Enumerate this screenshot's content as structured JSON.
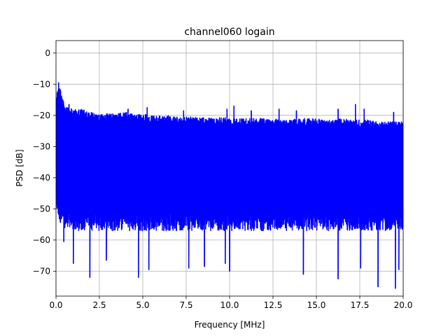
{
  "chart_data": {
    "type": "line",
    "title": "channel060 logain",
    "xlabel": "Frequency [MHz]",
    "ylabel": "PSD [dB]",
    "xlim": [
      0,
      20
    ],
    "ylim": [
      -78,
      4
    ],
    "grid": true,
    "xticks": [
      0,
      2.5,
      5,
      7.5,
      10,
      12.5,
      15,
      17.5,
      20
    ],
    "xtick_labels": [
      "0.0",
      "2.5",
      "5.0",
      "7.5",
      "10.0",
      "12.5",
      "15.0",
      "17.5",
      "20.0"
    ],
    "yticks": [
      0,
      -10,
      -20,
      -30,
      -40,
      -50,
      -60,
      -70
    ],
    "ytick_labels": [
      "0",
      "−10",
      "−20",
      "−30",
      "−40",
      "−50",
      "−60",
      "−70"
    ],
    "series": [
      {
        "color": "#0000ff",
        "envelope": {
          "x": [
            0.0,
            0.1,
            0.2,
            0.5,
            1.0,
            1.5,
            2.0,
            2.5,
            3.0,
            3.5,
            4.0,
            4.5,
            5.0,
            5.5,
            6.0,
            6.5,
            7.0,
            7.5,
            8.0,
            8.5,
            9.0,
            9.5,
            10.0,
            10.5,
            11.0,
            11.5,
            12.0,
            12.5,
            13.0,
            13.5,
            14.0,
            14.5,
            15.0,
            15.5,
            16.0,
            16.5,
            17.0,
            17.5,
            18.0,
            18.5,
            19.0,
            19.5,
            20.0
          ],
          "upper": [
            -13,
            -12,
            -10,
            -17,
            -18,
            -18,
            -19,
            -19.5,
            -19.5,
            -19.5,
            -19,
            -19.5,
            -19.5,
            -20,
            -20,
            -20,
            -20.5,
            -20.5,
            -20.5,
            -20.5,
            -21,
            -20.5,
            -21,
            -21,
            -21,
            -21,
            -21,
            -21,
            -21.5,
            -21.5,
            -21,
            -21,
            -21,
            -21.5,
            -21.5,
            -21,
            -21.5,
            -21.5,
            -21.5,
            -22,
            -22,
            -22,
            -22
          ],
          "lower": [
            -50,
            -52,
            -54,
            -56,
            -57,
            -57,
            -57,
            -57,
            -57,
            -57,
            -57,
            -57,
            -57,
            -57,
            -57,
            -57,
            -57,
            -57,
            -57,
            -57,
            -57,
            -57,
            -57,
            -57,
            -57,
            -57,
            -57,
            -57,
            -57,
            -57,
            -57,
            -57,
            -57,
            -57,
            -57,
            -57,
            -57,
            -57,
            -57,
            -57,
            -57,
            -57,
            -57
          ]
        },
        "spikes_up": [
          {
            "x": 0.15,
            "y": -9.5
          },
          {
            "x": 0.75,
            "y": -16.5
          },
          {
            "x": 4.15,
            "y": -18
          },
          {
            "x": 5.25,
            "y": -17.5
          },
          {
            "x": 7.35,
            "y": -18.5
          },
          {
            "x": 9.85,
            "y": -18
          },
          {
            "x": 10.25,
            "y": -17
          },
          {
            "x": 11.25,
            "y": -18.5
          },
          {
            "x": 12.85,
            "y": -18
          },
          {
            "x": 13.85,
            "y": -18.5
          },
          {
            "x": 16.25,
            "y": -18
          },
          {
            "x": 17.25,
            "y": -16.5
          },
          {
            "x": 17.75,
            "y": -18
          },
          {
            "x": 19.45,
            "y": -19
          }
        ],
        "spikes_down": [
          {
            "x": 0.45,
            "y": -60.5
          },
          {
            "x": 1.0,
            "y": -67.5
          },
          {
            "x": 1.95,
            "y": -72
          },
          {
            "x": 2.9,
            "y": -66.5
          },
          {
            "x": 4.75,
            "y": -72
          },
          {
            "x": 5.35,
            "y": -69.5
          },
          {
            "x": 7.65,
            "y": -69
          },
          {
            "x": 8.55,
            "y": -68.5
          },
          {
            "x": 9.75,
            "y": -67.5
          },
          {
            "x": 10.0,
            "y": -70
          },
          {
            "x": 14.25,
            "y": -71
          },
          {
            "x": 16.25,
            "y": -72.5
          },
          {
            "x": 17.55,
            "y": -69
          },
          {
            "x": 18.55,
            "y": -75
          },
          {
            "x": 19.55,
            "y": -75.5
          },
          {
            "x": 19.75,
            "y": -69.5
          }
        ]
      }
    ]
  }
}
